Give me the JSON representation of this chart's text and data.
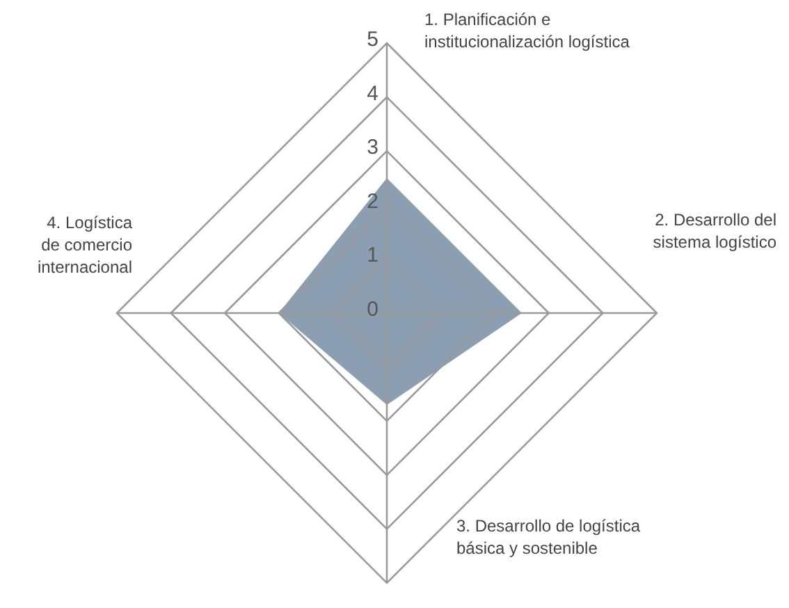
{
  "chart_data": {
    "type": "radar",
    "categories": [
      "1. Planificación e institucionalización logística",
      "2. Desarrollo del sistema logístico",
      "3. Desarrollo de logística básica y sostenible",
      "4. Logística de comercio internacional"
    ],
    "series": [
      {
        "color": "#8c9fb2",
        "values": [
          2.5,
          2.5,
          1.7,
          2.0
        ]
      }
    ],
    "ylim": [
      0,
      5
    ],
    "yticks": [
      0,
      1,
      2,
      3,
      4,
      5
    ]
  }
}
